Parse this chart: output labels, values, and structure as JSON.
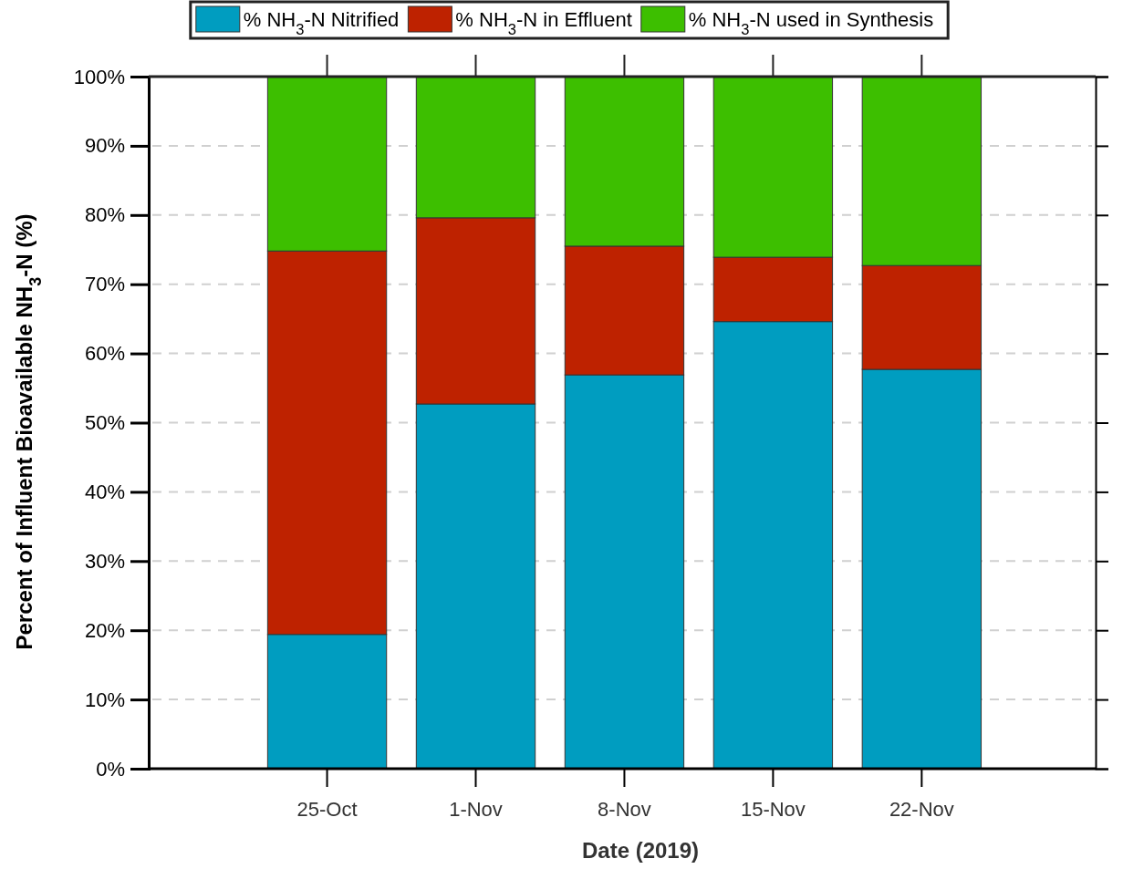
{
  "chart_data": {
    "type": "bar",
    "stacked": true,
    "xlabel": "Date (2019)",
    "ylabel": "Percent of Influent Bioavailable NH$_{3}$-N (%)",
    "categories": [
      "25-Oct",
      "1-Nov",
      "8-Nov",
      "15-Nov",
      "22-Nov"
    ],
    "series": [
      {
        "name": "% NH$_{3}$-N Nitrified",
        "color": "#009dc0",
        "values": [
          19.4,
          52.7,
          56.9,
          64.6,
          57.7
        ]
      },
      {
        "name": "% NH$_{3}$-N in Effluent",
        "color": "#be2200",
        "values": [
          55.4,
          26.9,
          18.6,
          9.3,
          15.0
        ]
      },
      {
        "name": "% NH$_{3}$-N used in Synthesis",
        "color": "#3dbf00",
        "values": [
          25.2,
          20.4,
          24.5,
          26.1,
          27.3
        ]
      }
    ],
    "ylim": [
      0,
      100
    ],
    "yticks": [
      {
        "value": 0,
        "label": "0%"
      },
      {
        "value": 10,
        "label": "10%"
      },
      {
        "value": 20,
        "label": "20%"
      },
      {
        "value": 30,
        "label": "30%"
      },
      {
        "value": 40,
        "label": "40%"
      },
      {
        "value": 50,
        "label": "50%"
      },
      {
        "value": 60,
        "label": "60%"
      },
      {
        "value": 70,
        "label": "70%"
      },
      {
        "value": 80,
        "label": "80%"
      },
      {
        "value": 90,
        "label": "90%"
      },
      {
        "value": 100,
        "label": "100%"
      }
    ],
    "grid": "y",
    "legend": "top"
  }
}
